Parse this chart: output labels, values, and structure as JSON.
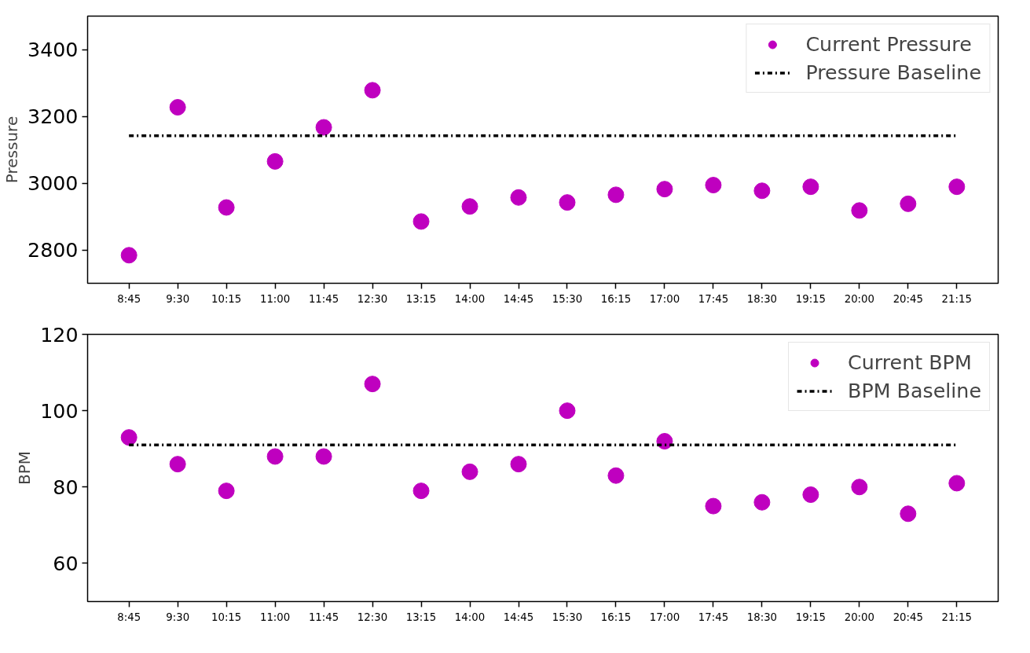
{
  "chart_data": [
    {
      "type": "scatter",
      "ylabel": "Pressure",
      "categories": [
        "8:45",
        "9:30",
        "10:15",
        "11:00",
        "11:45",
        "12:30",
        "13:15",
        "14:00",
        "14:45",
        "15:30",
        "16:15",
        "17:00",
        "17:45",
        "18:30",
        "19:15",
        "20:00",
        "20:45",
        "21:15"
      ],
      "ylim": [
        2700,
        3500
      ],
      "yticks": [
        2800,
        3000,
        3200,
        3400
      ],
      "grid": false,
      "legend": "top right",
      "series": [
        {
          "name": "Current Pressure",
          "marker": "circle",
          "color": "#bf00bf",
          "values": [
            2784,
            3227,
            2927,
            3065,
            3167,
            3278,
            2885,
            2930,
            2957,
            2942,
            2965,
            2982,
            2994,
            2977,
            2989,
            2918,
            2938,
            2989
          ]
        },
        {
          "name": "Pressure Baseline",
          "type": "line",
          "line_style": "dashdot",
          "color": "#000000",
          "values": [
            3142,
            3142,
            3142,
            3142,
            3142,
            3142,
            3142,
            3142,
            3142,
            3142,
            3142,
            3142,
            3142,
            3142,
            3142,
            3142,
            3142,
            3142
          ]
        }
      ]
    },
    {
      "type": "scatter",
      "ylabel": "BPM",
      "categories": [
        "8:45",
        "9:30",
        "10:15",
        "11:00",
        "11:45",
        "12:30",
        "13:15",
        "14:00",
        "14:45",
        "15:30",
        "16:15",
        "17:00",
        "17:45",
        "18:30",
        "19:15",
        "20:00",
        "20:45",
        "21:15"
      ],
      "ylim": [
        50,
        120
      ],
      "yticks": [
        60,
        80,
        100,
        120
      ],
      "grid": false,
      "legend": "top right",
      "series": [
        {
          "name": "Current BPM",
          "marker": "circle",
          "color": "#bf00bf",
          "values": [
            93,
            86,
            79,
            88,
            88,
            107,
            79,
            84,
            86,
            100,
            83,
            92,
            75,
            76,
            78,
            80,
            73,
            81
          ]
        },
        {
          "name": "BPM Baseline",
          "type": "line",
          "line_style": "dashdot",
          "color": "#000000",
          "values": [
            91,
            91,
            91,
            91,
            91,
            91,
            91,
            91,
            91,
            91,
            91,
            91,
            91,
            91,
            91,
            91,
            91,
            91
          ]
        }
      ]
    }
  ]
}
